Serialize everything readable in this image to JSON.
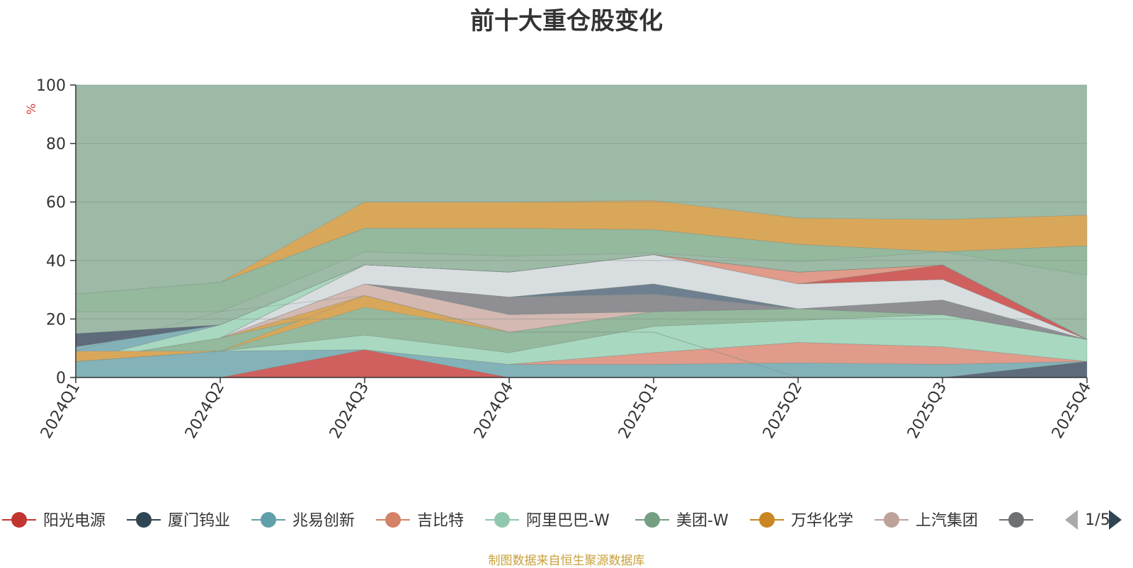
{
  "title": "前十大重仓股变化",
  "source": "制图数据来自恒生聚源数据库",
  "chart_data": {
    "type": "area",
    "stacked": true,
    "ylabel": "%",
    "ylim": [
      0,
      100
    ],
    "yticks": [
      0,
      20,
      40,
      60,
      80,
      100
    ],
    "categories": [
      "2024Q1",
      "2024Q2",
      "2024Q3",
      "2024Q4",
      "2025Q1",
      "2025Q2",
      "2025Q3",
      "2025Q4"
    ],
    "grid": true,
    "series": [
      {
        "name": "",
        "color": "#5d6b7b",
        "values": [
          0,
          0,
          0,
          0,
          0,
          0,
          0,
          5.5
        ]
      },
      {
        "name": "",
        "color": "#d0605e",
        "values": [
          0,
          0,
          9.5,
          0,
          0,
          0,
          0,
          0
        ]
      },
      {
        "name": "",
        "color": "#83b2b9",
        "values": [
          5.5,
          9,
          0,
          4.5,
          4.5,
          5,
          4.5,
          0
        ]
      },
      {
        "name": "",
        "color": "#e09b8a",
        "values": [
          0,
          0,
          0,
          0,
          4,
          7,
          6,
          0
        ]
      },
      {
        "name": "",
        "color": "#a8d8c0",
        "values": [
          0,
          0,
          5,
          4,
          9,
          7.5,
          11,
          7.5
        ]
      },
      {
        "name": "",
        "color": "#94b99d",
        "values": [
          0,
          4.5,
          10,
          7,
          5,
          4,
          0,
          0
        ]
      },
      {
        "name": "",
        "color": "#d9a75a",
        "values": [
          0,
          0,
          3.5,
          0,
          0,
          0,
          0,
          0
        ]
      },
      {
        "name": "",
        "color": "#d4b8b2",
        "values": [
          0,
          0,
          4,
          6,
          0,
          0,
          0,
          0
        ]
      },
      {
        "name": "",
        "color": "#8e8e93",
        "values": [
          0,
          0,
          0,
          6,
          6,
          0,
          5,
          0
        ]
      },
      {
        "name": "",
        "color": "#6e7f8f",
        "values": [
          0,
          0,
          0,
          0,
          3.5,
          0,
          0,
          0
        ]
      },
      {
        "name": "",
        "color": "#d8dde0",
        "values": [
          0,
          0,
          6.5,
          8.5,
          10,
          8.5,
          7,
          0
        ]
      },
      {
        "name": "",
        "color": "#d0605e",
        "values": [
          0,
          0,
          0,
          0,
          0,
          0,
          5,
          0
        ]
      },
      {
        "name": "",
        "color": "#e09b8a",
        "values": [
          0,
          0,
          0,
          0,
          0,
          4,
          0,
          0
        ]
      },
      {
        "name": "",
        "color": "#94b99d",
        "values": [
          0,
          0,
          0,
          0,
          0,
          0,
          0,
          0
        ]
      },
      {
        "name": "阿里巴巴-W",
        "color": "#a8d8c0",
        "values": [
          0,
          4.5,
          0,
          0,
          0,
          0,
          0,
          0
        ]
      },
      {
        "name": "兆易创新",
        "color": "#83b2b9",
        "values": [
          5,
          0,
          0,
          0,
          0,
          0,
          0,
          0
        ]
      },
      {
        "name": "厦门钨业",
        "color": "#5d6b7b",
        "values": [
          4.5,
          0,
          0,
          0,
          0,
          0,
          0,
          0
        ]
      }
    ]
  },
  "overlay": [
    {
      "color": "#6e7f8f",
      "values": [
        null,
        8.8,
        8.8,
        null,
        null,
        null,
        null,
        null
      ],
      "upper": [
        null,
        14.5,
        43.5,
        null,
        null,
        null,
        null,
        null
      ]
    },
    {
      "color": "#d8dde0",
      "values": [
        null,
        14.5,
        14.5,
        null,
        null,
        null,
        null,
        null
      ],
      "upper": [
        null,
        14.5,
        39,
        null,
        null,
        null,
        null,
        null
      ]
    }
  ],
  "bands": [
    {
      "color": "#d9a75a",
      "lower": [
        5.5,
        9,
        24,
        15.5,
        15.5,
        0,
        0,
        0
      ],
      "upper": [
        9,
        9,
        28,
        15.5,
        15.5,
        0,
        0,
        0
      ]
    },
    {
      "color": "#a8d8c0",
      "lower": [
        9,
        22.5,
        28,
        15.5,
        15.5,
        0,
        0,
        0
      ],
      "upper": [
        9,
        22.5,
        28,
        15.5,
        15.5,
        0,
        0,
        0
      ]
    },
    {
      "color": "#d9a75a",
      "lower": [
        28.5,
        32.5,
        51,
        51,
        50.5,
        45.5,
        43,
        45
      ],
      "upper": [
        28.5,
        32.5,
        60,
        60,
        60.5,
        54.5,
        54,
        55.5
      ]
    },
    {
      "color": "#94b99d",
      "lower": [
        22.5,
        22.5,
        43,
        41.5,
        42.5,
        39.5,
        43,
        35
      ],
      "upper": [
        28.5,
        32.5,
        51,
        51,
        50.5,
        45.5,
        43,
        45
      ]
    }
  ],
  "legend": {
    "items": [
      {
        "name": "阳光电源",
        "color": "#c23531"
      },
      {
        "name": "厦门钨业",
        "color": "#2f4554"
      },
      {
        "name": "兆易创新",
        "color": "#61a0a8"
      },
      {
        "name": "吉比特",
        "color": "#d48265"
      },
      {
        "name": "阿里巴巴-W",
        "color": "#91c7ae"
      },
      {
        "name": "美团-W",
        "color": "#749f83"
      },
      {
        "name": "万华化学",
        "color": "#ca8622"
      },
      {
        "name": "上汽集团",
        "color": "#bda29a"
      },
      {
        "name": "",
        "color": "#6e7074"
      }
    ],
    "page": "1/5"
  },
  "background_fill": "#9cbaa6"
}
